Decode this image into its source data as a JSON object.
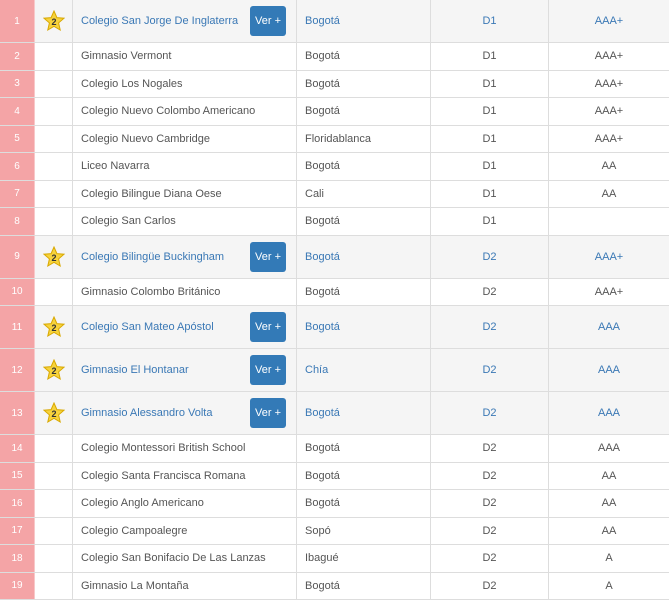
{
  "table": {
    "rows": [
      {
        "number": "1",
        "star": "2",
        "name": "Colegio San Jorge De Inglaterra",
        "button": "Ver +",
        "city": "Bogotá",
        "division": "D1",
        "rating": "AAA+"
      },
      {
        "number": "2",
        "name": "Gimnasio Vermont",
        "city": "Bogotá",
        "division": "D1",
        "rating": "AAA+"
      },
      {
        "number": "3",
        "name": "Colegio Los Nogales",
        "city": "Bogotá",
        "division": "D1",
        "rating": "AAA+"
      },
      {
        "number": "4",
        "name": "Colegio Nuevo Colombo Americano",
        "city": "Bogotá",
        "division": "D1",
        "rating": "AAA+"
      },
      {
        "number": "5",
        "name": "Colegio Nuevo Cambridge",
        "city": "Floridablanca",
        "division": "D1",
        "rating": "AAA+"
      },
      {
        "number": "6",
        "name": "Liceo Navarra",
        "city": "Bogotá",
        "division": "D1",
        "rating": "AA"
      },
      {
        "number": "7",
        "name": "Colegio Bilingue Diana Oese",
        "city": "Cali",
        "division": "D1",
        "rating": "AA"
      },
      {
        "number": "8",
        "name": "Colegio San Carlos",
        "city": "Bogotá",
        "division": "D1"
      },
      {
        "number": "9",
        "star": "2",
        "name": "Colegio Bilingüe Buckingham",
        "button": "Ver +",
        "city": "Bogotá",
        "division": "D2",
        "rating": "AAA+"
      },
      {
        "number": "10",
        "name": "Gimnasio Colombo Británico",
        "city": "Bogotá",
        "division": "D2",
        "rating": "AAA+"
      },
      {
        "number": "11",
        "star": "2",
        "name": "Colegio San Mateo Apóstol",
        "button": "Ver +",
        "city": "Bogotá",
        "division": "D2",
        "rating": "AAA"
      },
      {
        "number": "12",
        "star": "2",
        "name": "Gimnasio El Hontanar",
        "button": "Ver +",
        "city": "Chía",
        "division": "D2",
        "rating": "AAA"
      },
      {
        "number": "13",
        "star": "2",
        "name": "Gimnasio Alessandro Volta",
        "button": "Ver +",
        "city": "Bogotá",
        "division": "D2",
        "rating": "AAA"
      },
      {
        "number": "14",
        "name": "Colegio Montessori British School",
        "city": "Bogotá",
        "division": "D2",
        "rating": "AAA"
      },
      {
        "number": "15",
        "name": "Colegio Santa Francisca Romana",
        "city": "Bogotá",
        "division": "D2",
        "rating": "AA"
      },
      {
        "number": "16",
        "name": "Colegio Anglo Americano",
        "city": "Bogotá",
        "division": "D2",
        "rating": "AA"
      },
      {
        "number": "17",
        "name": "Colegio Campoalegre",
        "city": "Sopó",
        "division": "D2",
        "rating": "AA"
      },
      {
        "number": "18",
        "name": "Colegio San Bonifacio De Las Lanzas",
        "city": "Ibagué",
        "division": "D2",
        "rating": "A"
      },
      {
        "number": "19",
        "name": "Gimnasio La Montaña",
        "city": "Bogotá",
        "division": "D2",
        "rating": "A"
      }
    ]
  }
}
